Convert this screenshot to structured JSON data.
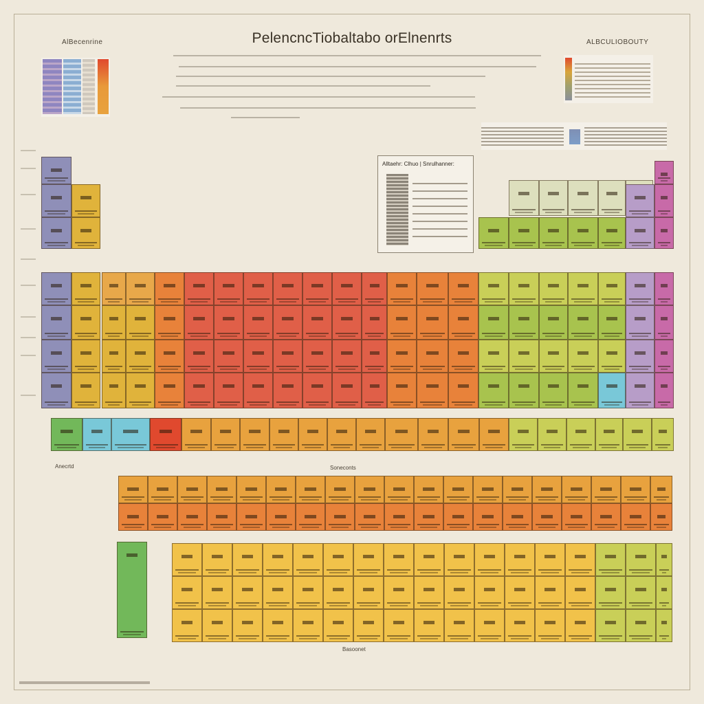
{
  "title": "PelencncTiobaltabo orElnenrts",
  "corners": {
    "left_label": "AlBecenrine",
    "right_label": "ALBCULIOBOUTY"
  },
  "popup": {
    "heading": "Alltaehr: Clhuo | Snrulhanner:"
  },
  "labels": {
    "section_a": "Anecrtd",
    "section_b": "Soneconts",
    "bottom": "Basoonet"
  },
  "colors": {
    "background": "#efe9dc",
    "alkali": "#8f8fb8",
    "alkaline": "#e0b33b",
    "transition_warm": "#e8a84a",
    "transition_red": "#e05f48",
    "transition_orange": "#e8823a",
    "metalloid": "#a8c34e",
    "nonmetal": "#c9cf58",
    "noble": "#c86aa8",
    "cyan": "#79c8d8",
    "green": "#72b85a",
    "lanthanide": "#e8a23e",
    "actinide": "#f1c24a"
  }
}
